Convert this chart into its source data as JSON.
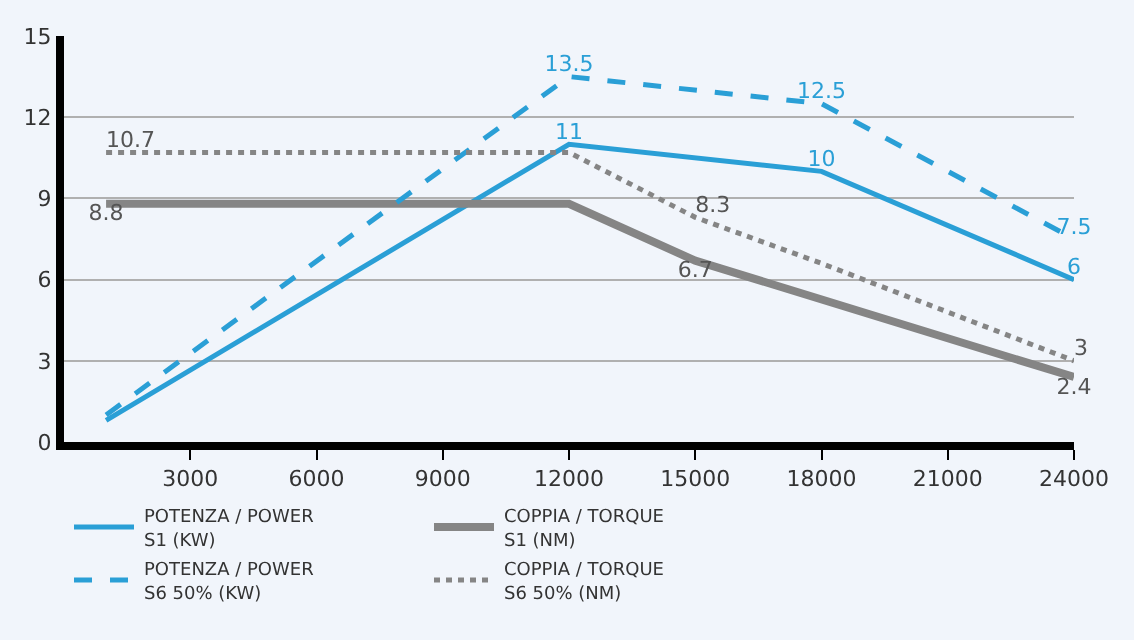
{
  "chart_data": {
    "type": "line",
    "x": [
      1000,
      12000,
      15000,
      18000,
      24000
    ],
    "series": [
      {
        "name": "POTENZA / POWER\nS1 (KW)",
        "color": "#2a9fd6",
        "line_style": "solid",
        "values": [
          0.8,
          11,
          null,
          10,
          6
        ],
        "value_labels": [
          null,
          "11",
          null,
          "10",
          "6"
        ]
      },
      {
        "name": "COPPIA / TORQUE\nS1 (NM)",
        "color": "#858585",
        "line_style": "solid",
        "values": [
          8.8,
          8.8,
          6.7,
          null,
          2.4
        ],
        "value_labels": [
          "8.8",
          null,
          "6.7",
          null,
          "2.4"
        ]
      },
      {
        "name": "POTENZA / POWER\nS6 50% (KW)",
        "color": "#2a9fd6",
        "line_style": "dashed",
        "values": [
          1.0,
          13.5,
          null,
          12.5,
          7.5
        ],
        "value_labels": [
          null,
          "13.5",
          null,
          "12.5",
          "7.5"
        ]
      },
      {
        "name": "COPPIA / TORQUE\nS6 50% (NM)",
        "color": "#858585",
        "line_style": "dotted",
        "values": [
          10.7,
          10.7,
          8.3,
          6.6,
          3
        ],
        "value_labels": [
          "10.7",
          null,
          "8.3",
          null,
          "3"
        ]
      }
    ],
    "xlim": [
      0,
      24000
    ],
    "xticks": [
      3000,
      6000,
      9000,
      12000,
      15000,
      18000,
      21000,
      24000
    ],
    "ylim": [
      0,
      15
    ],
    "yticks": [
      0,
      3,
      6,
      9,
      12,
      15
    ],
    "grid": "y",
    "legend": "bottom",
    "marker": "none"
  }
}
